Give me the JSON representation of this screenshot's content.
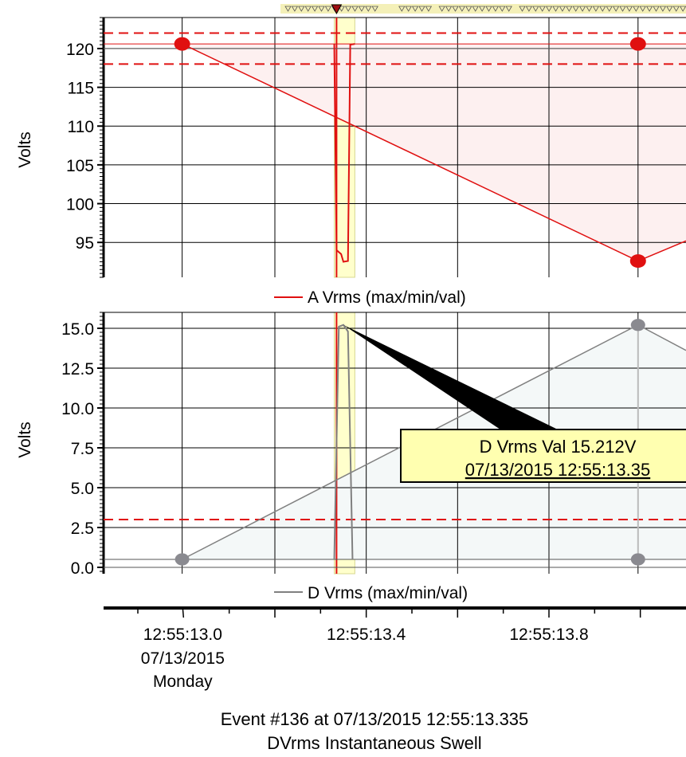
{
  "chart_data": [
    {
      "type": "line",
      "ylabel": "Volts",
      "ylim": [
        90.5,
        124
      ],
      "yticks": [
        95,
        100,
        105,
        110,
        115,
        120
      ],
      "ytick_labels": [
        "95",
        "100",
        "105",
        "110",
        "115",
        "120"
      ],
      "legend": "A Vrms (max/min/val)",
      "series_color": "#e01010",
      "threshold_lines": [
        122,
        118
      ],
      "nominal": 120,
      "x": [
        "12:55:12.997",
        "12:55:13.995"
      ],
      "series": [
        {
          "name": "A Vrms (max/min/val)",
          "values": [
            120.6,
            92.6
          ]
        }
      ],
      "envelope_max": 120.6,
      "dip_min": 92.5
    },
    {
      "type": "line",
      "ylabel": "Volts",
      "ylim": [
        -0.4,
        16
      ],
      "yticks": [
        0.0,
        2.5,
        5.0,
        7.5,
        10.0,
        12.5,
        15.0
      ],
      "ytick_labels": [
        "0.0",
        "2.5",
        "5.0",
        "7.5",
        "10.0",
        "12.5",
        "15.0"
      ],
      "legend": "D Vrms (max/min/val)",
      "series_color": "#808080",
      "threshold_lines": [
        3.0
      ],
      "x": [
        "12:55:12.997",
        "12:55:13.995"
      ],
      "series": [
        {
          "name": "D Vrms (max/min/val)",
          "values": [
            0.5,
            15.212
          ]
        }
      ],
      "peak": 15.212
    }
  ],
  "x_axis": {
    "range": [
      "12:55:12.825",
      "12:55:14.100"
    ],
    "tick_labels": [
      {
        "t": "12:55:13.0",
        "sub": [
          "07/13/2015",
          "Monday"
        ]
      },
      {
        "t": "12:55:13.4",
        "sub": []
      },
      {
        "t": "12:55:13.8",
        "sub": []
      }
    ]
  },
  "tooltip": {
    "line1": "D Vrms Val 15.212V",
    "line2": "07/13/2015 12:55:13.35"
  },
  "event": {
    "line1": "Event #136 at 07/13/2015 12:55:13.335",
    "line2": "DVrms Instantaneous Swell"
  },
  "colors": {
    "grid": "#000000",
    "threshold": "#e01010",
    "event_band": "#ffffcc",
    "event_band_edge": "#d8d890",
    "a_fill": "#fdf0f0",
    "d_fill": "#f4f8f8",
    "tooltip_bg": "#ffffb0"
  }
}
